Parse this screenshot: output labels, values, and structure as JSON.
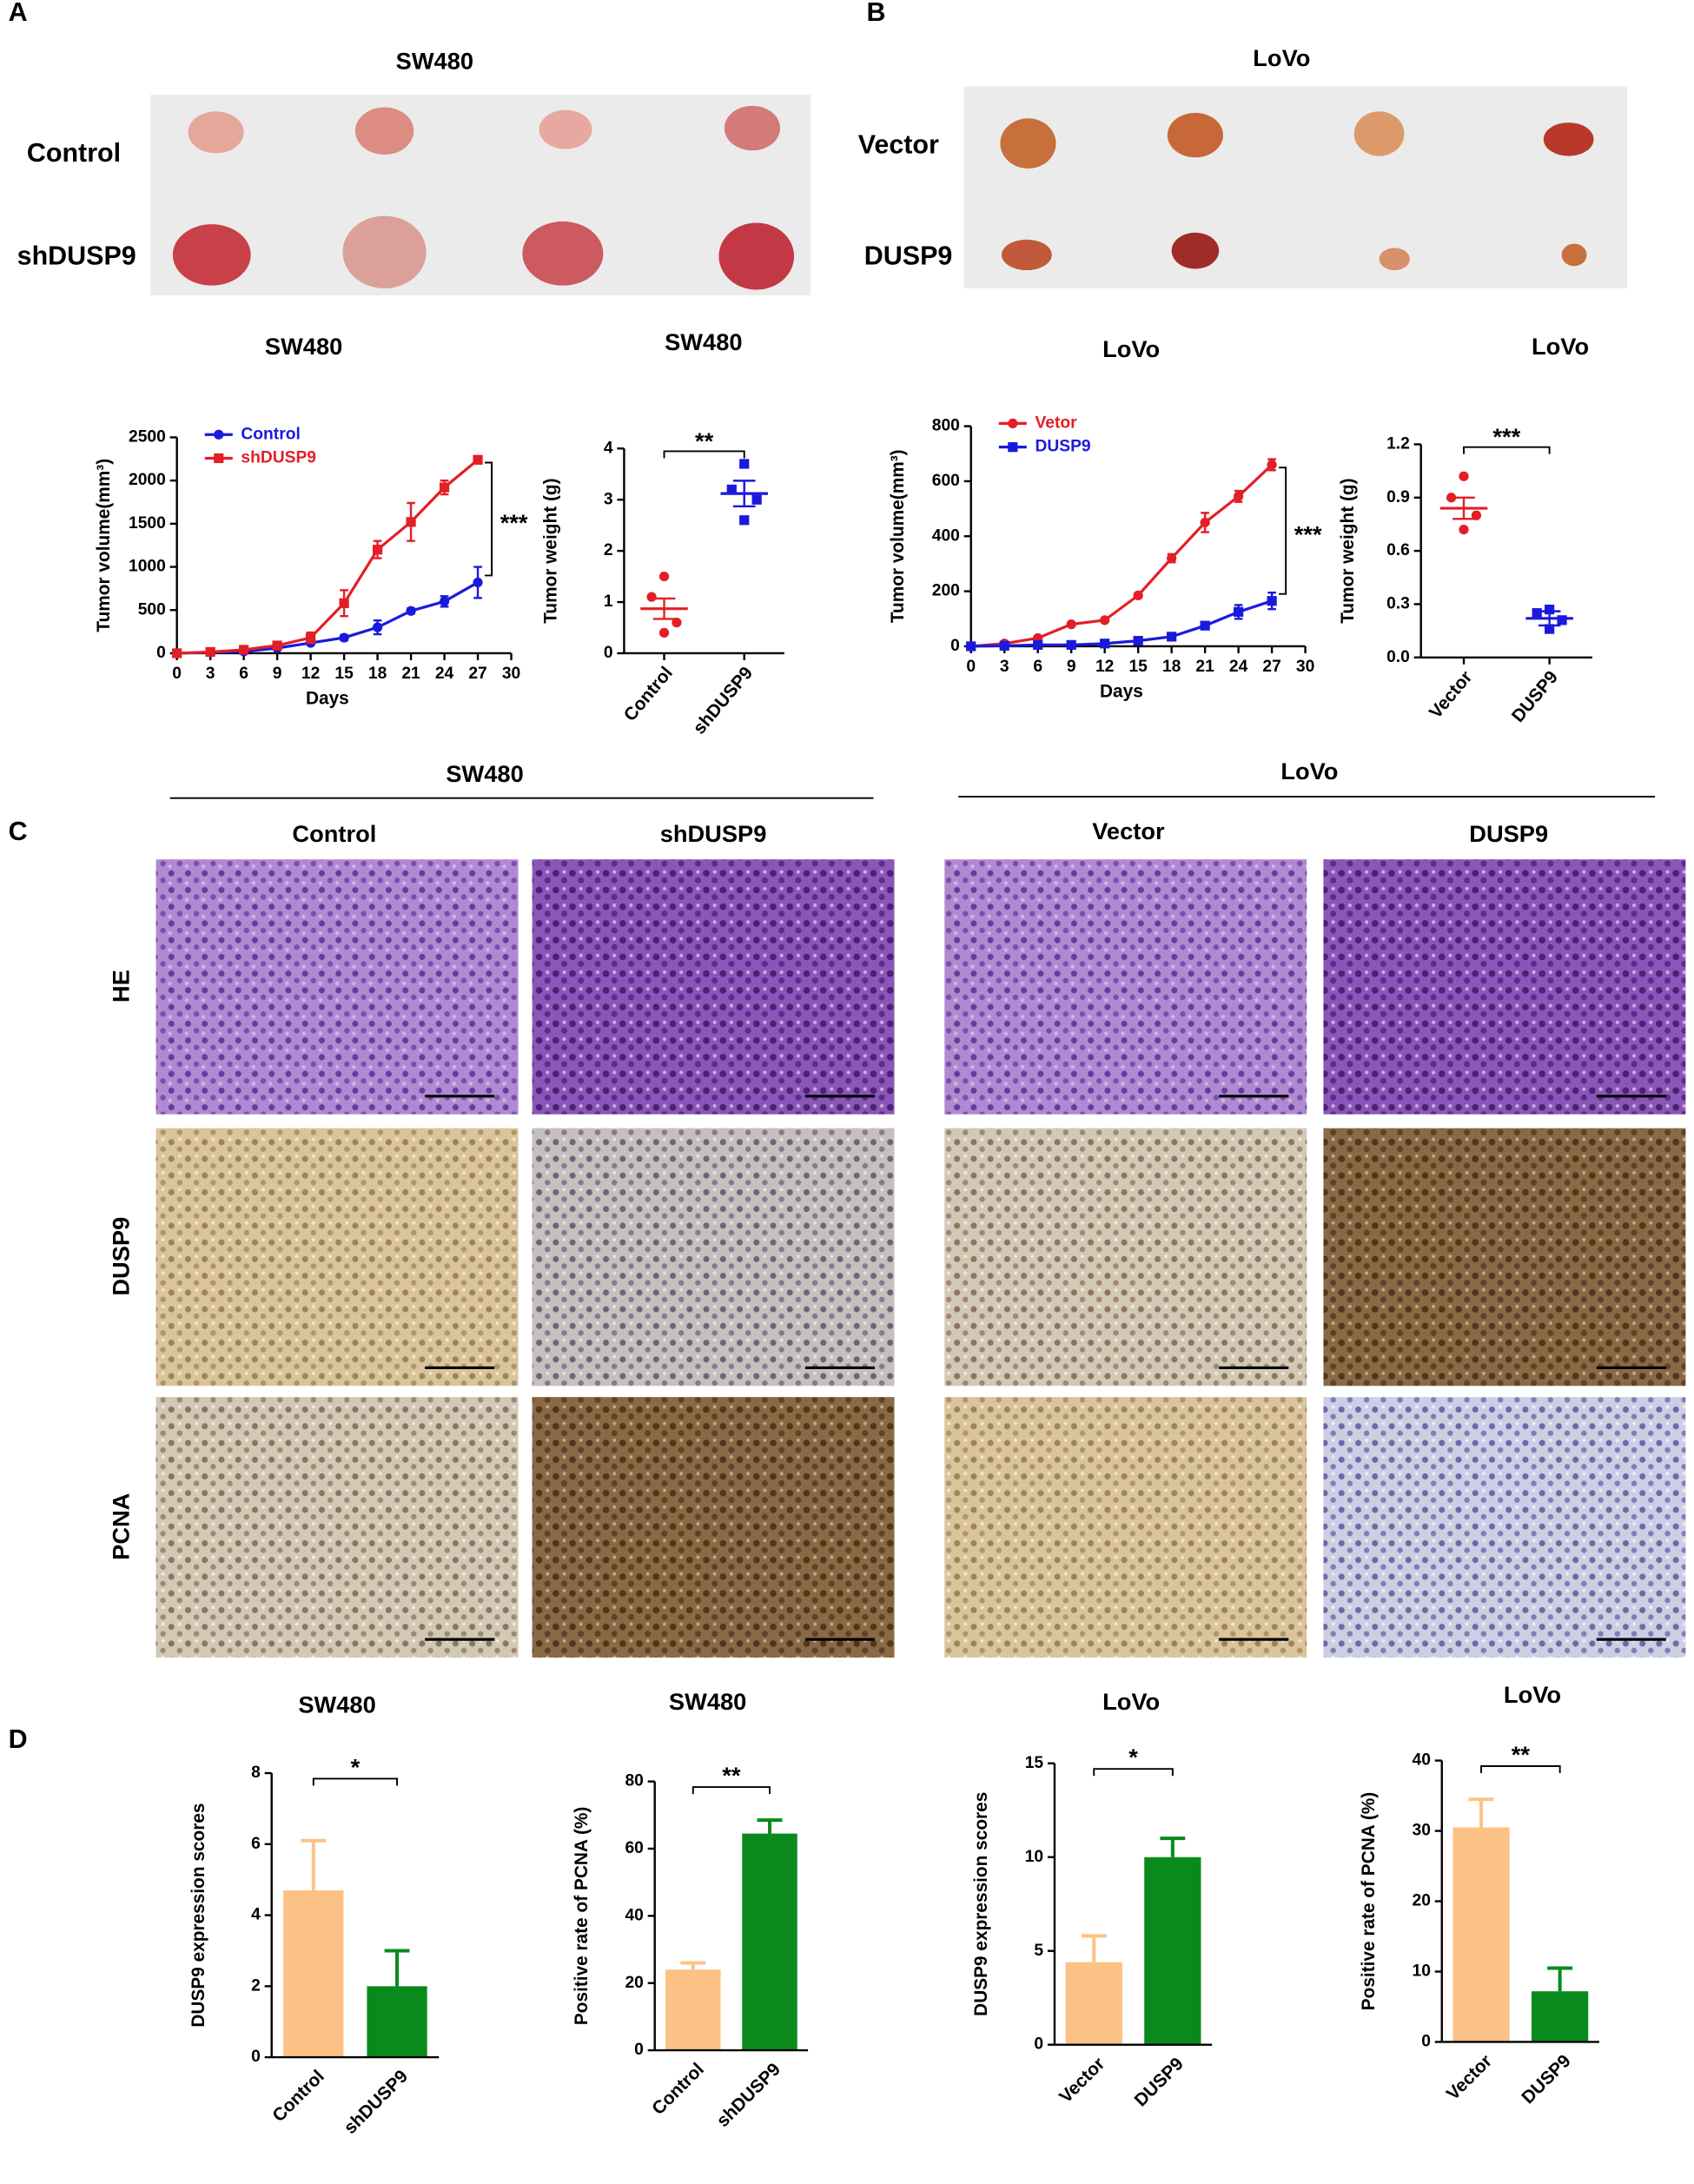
{
  "figure": {
    "panels": [
      "A",
      "B",
      "C",
      "D"
    ],
    "a_photo": {
      "title": "SW480",
      "rows": [
        "Control",
        "shDUSP9"
      ]
    },
    "b_photo": {
      "title": "LoVo",
      "rows": [
        "Vector",
        "DUSP9"
      ]
    },
    "c_histology": {
      "groups": [
        "SW480",
        "LoVo"
      ],
      "columns": [
        "Control",
        "shDUSP9",
        "Vector",
        "DUSP9"
      ],
      "rows": [
        "HE",
        "DUSP9",
        "PCNA"
      ]
    }
  },
  "chart_data": [
    {
      "type": "line",
      "title": "SW480",
      "x_label": "Days",
      "y_label": "Tumor volume(mm³)",
      "x": [
        0,
        3,
        6,
        9,
        12,
        15,
        18,
        21,
        24,
        27
      ],
      "series": [
        {
          "name": "Control",
          "color": "#1a1adc",
          "marker": "circle",
          "values": [
            0,
            10,
            20,
            60,
            120,
            180,
            300,
            490,
            600,
            820
          ],
          "errors": [
            0,
            5,
            5,
            10,
            20,
            30,
            80,
            30,
            60,
            180
          ]
        },
        {
          "name": "shDUSP9",
          "color": "#e21f26",
          "marker": "square",
          "values": [
            0,
            15,
            40,
            90,
            180,
            580,
            1200,
            1520,
            1920,
            2240
          ],
          "errors": [
            0,
            5,
            10,
            20,
            60,
            150,
            100,
            220,
            80,
            20
          ]
        }
      ],
      "xlim": [
        0,
        30
      ],
      "xticks": [
        0,
        3,
        6,
        9,
        12,
        15,
        18,
        21,
        24,
        27,
        30
      ],
      "ylim": [
        0,
        2500
      ],
      "yticks": [
        0,
        500,
        1000,
        1500,
        2000,
        2500
      ],
      "annotation": "***"
    },
    {
      "type": "scatter",
      "title": "SW480",
      "y_label": "Tumor weight (g)",
      "categories": [
        "Control",
        "shDUSP9"
      ],
      "series": [
        {
          "name": "Control",
          "color": "#e21f26",
          "marker": "circle",
          "values": [
            1.5,
            1.1,
            0.6,
            0.4
          ],
          "mean": 0.87,
          "sem": 0.2
        },
        {
          "name": "shDUSP9",
          "color": "#1a1adc",
          "marker": "square",
          "values": [
            3.7,
            3.2,
            3.0,
            2.6
          ],
          "mean": 3.12,
          "sem": 0.25
        }
      ],
      "ylim": [
        0,
        4
      ],
      "yticks": [
        0,
        1,
        2,
        3,
        4
      ],
      "annotation": "**"
    },
    {
      "type": "line",
      "title": "LoVo",
      "x_label": "Days",
      "y_label": "Tumor volume(mm³)",
      "x": [
        0,
        3,
        6,
        9,
        12,
        15,
        18,
        21,
        24,
        27
      ],
      "series": [
        {
          "name": "Vetor",
          "color": "#e21f26",
          "marker": "circle",
          "values": [
            0,
            10,
            30,
            80,
            95,
            185,
            320,
            450,
            545,
            660
          ],
          "errors": [
            0,
            3,
            5,
            5,
            5,
            8,
            15,
            35,
            20,
            20
          ]
        },
        {
          "name": "DUSP9",
          "color": "#1a1adc",
          "marker": "square",
          "values": [
            0,
            2,
            5,
            5,
            10,
            20,
            35,
            75,
            125,
            165
          ],
          "errors": [
            0,
            2,
            2,
            2,
            3,
            4,
            6,
            10,
            25,
            30
          ]
        }
      ],
      "xlim": [
        0,
        30
      ],
      "xticks": [
        0,
        3,
        6,
        9,
        12,
        15,
        18,
        21,
        24,
        27,
        30
      ],
      "ylim": [
        0,
        800
      ],
      "yticks": [
        0,
        200,
        400,
        600,
        800
      ],
      "annotation": "***"
    },
    {
      "type": "scatter",
      "title": "LoVo",
      "y_label": "Tumor weight (g)",
      "categories": [
        "Vector",
        "DUSP9"
      ],
      "series": [
        {
          "name": "Vector",
          "color": "#e21f26",
          "marker": "circle",
          "values": [
            1.02,
            0.9,
            0.8,
            0.72
          ],
          "mean": 0.84,
          "sem": 0.06
        },
        {
          "name": "DUSP9",
          "color": "#1a1adc",
          "marker": "square",
          "values": [
            0.27,
            0.25,
            0.21,
            0.16
          ],
          "mean": 0.22,
          "sem": 0.04
        }
      ],
      "ylim": [
        0,
        1.2
      ],
      "yticks": [
        {
          "value": 0,
          "label": "0.0"
        },
        0.3,
        0.6,
        0.9,
        1.2
      ],
      "annotation": "***"
    },
    {
      "type": "bar",
      "title": "SW480",
      "y_label": "DUSP9 expression scores",
      "categories": [
        "Control",
        "shDUSP9"
      ],
      "values": [
        4.7,
        2.0
      ],
      "errors": [
        1.4,
        1.0
      ],
      "colors": [
        "#fcc285",
        "#0a8a1c"
      ],
      "ylim": [
        0,
        8
      ],
      "yticks": [
        0,
        2,
        4,
        6,
        8
      ],
      "annotation": "*"
    },
    {
      "type": "bar",
      "title": "SW480",
      "y_label": "Positive rate of PCNA (%)",
      "categories": [
        "Control",
        "shDUSP9"
      ],
      "values": [
        24,
        64.5
      ],
      "errors": [
        2,
        4
      ],
      "colors": [
        "#fcc285",
        "#0a8a1c"
      ],
      "ylim": [
        0,
        80
      ],
      "yticks": [
        0,
        20,
        40,
        60,
        80
      ],
      "annotation": "**"
    },
    {
      "type": "bar",
      "title": "LoVo",
      "y_label": "DUSP9 expression scores",
      "categories": [
        "Vector",
        "DUSP9"
      ],
      "values": [
        4.4,
        10
      ],
      "errors": [
        1.4,
        1
      ],
      "colors": [
        "#fcc285",
        "#0a8a1c"
      ],
      "ylim": [
        0,
        15
      ],
      "yticks": [
        0,
        5,
        10,
        15
      ],
      "annotation": "*"
    },
    {
      "type": "bar",
      "title": "LoVo",
      "y_label": "Positive rate of PCNA (%)",
      "categories": [
        "Vector",
        "DUSP9"
      ],
      "values": [
        30.5,
        7.2
      ],
      "errors": [
        4,
        3.3
      ],
      "colors": [
        "#fcc285",
        "#0a8a1c"
      ],
      "ylim": [
        0,
        40
      ],
      "yticks": [
        0,
        10,
        20,
        30,
        40
      ],
      "annotation": "**"
    }
  ]
}
